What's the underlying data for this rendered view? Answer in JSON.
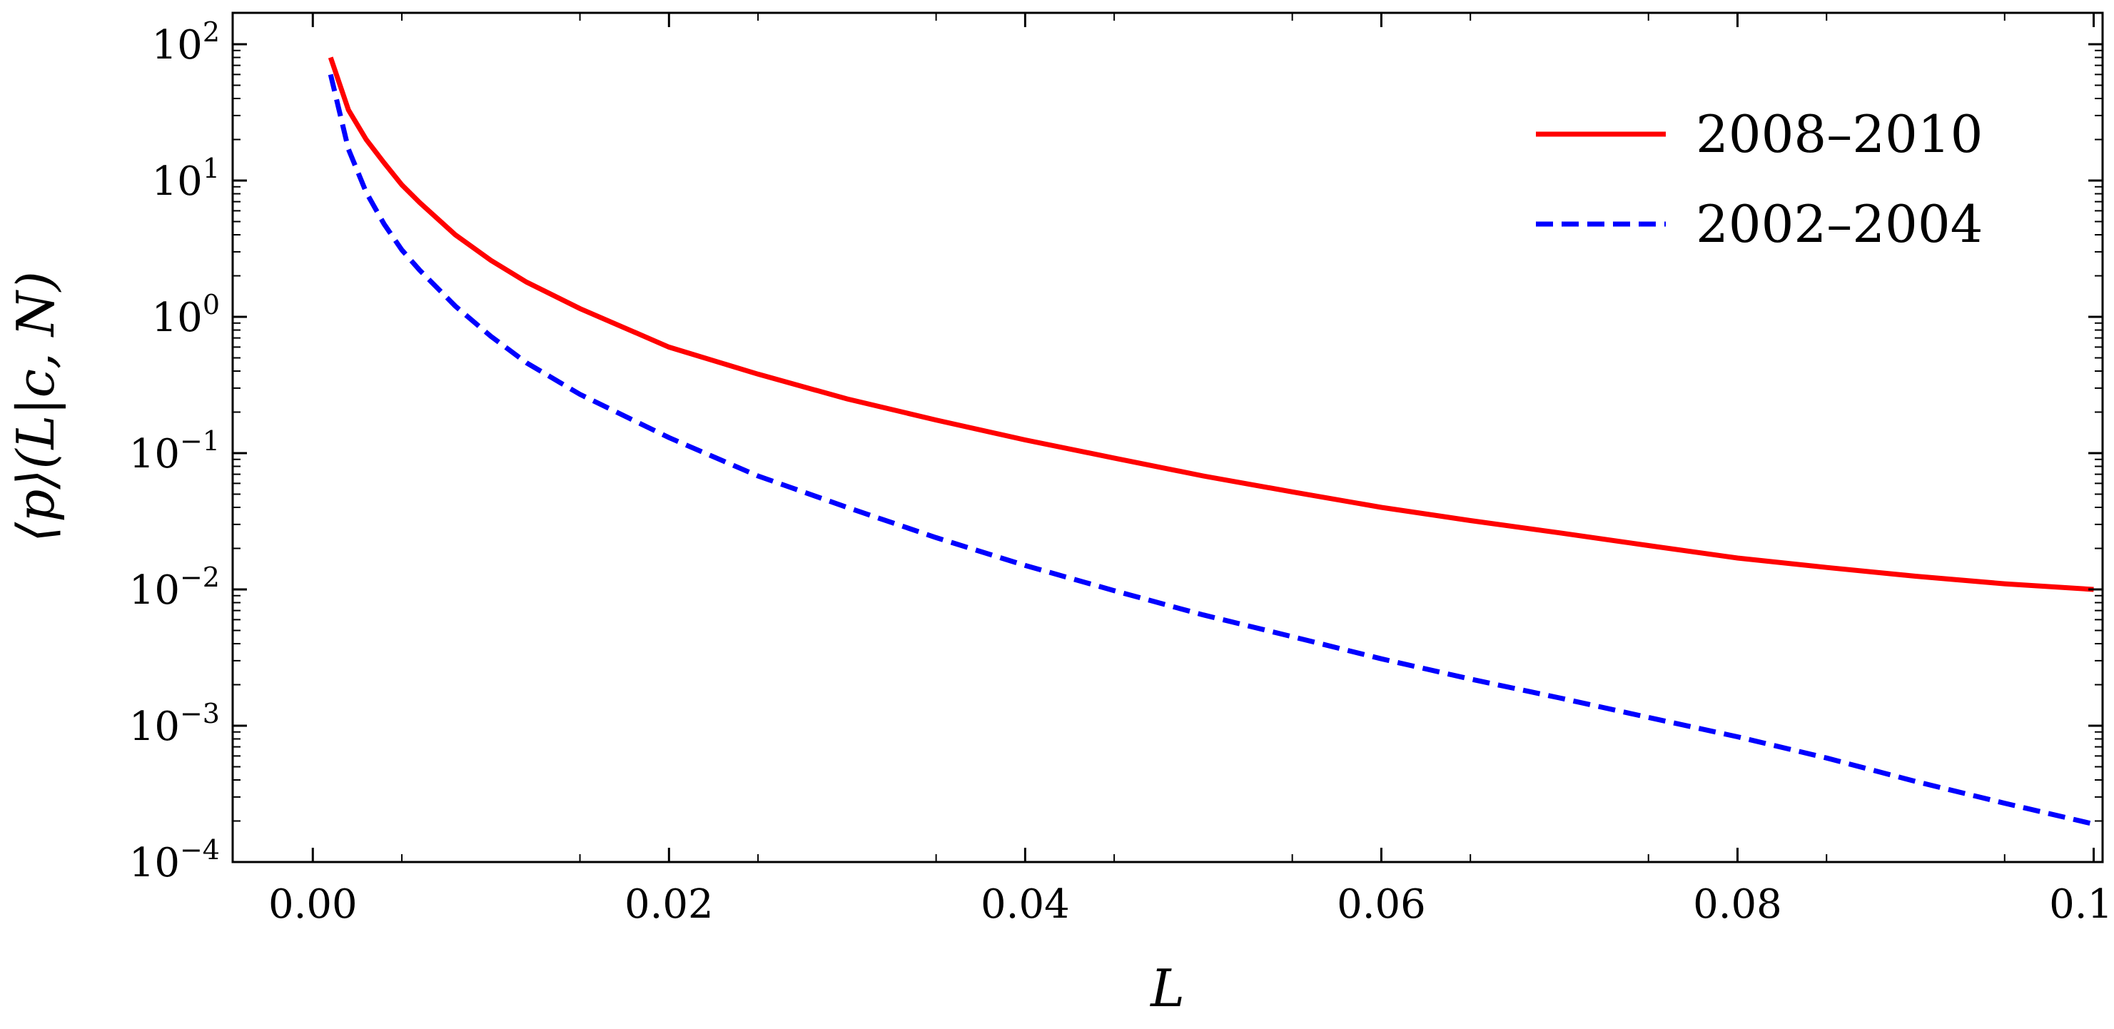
{
  "chart_data": {
    "type": "line",
    "xlabel": "L",
    "ylabel": "⟨p⟩(L|c, N)",
    "xlim": [
      -0.0045,
      0.1005
    ],
    "ylim": [
      0.0001,
      170
    ],
    "yscale": "log",
    "grid": false,
    "legend_position": "top-right",
    "x_ticks": [
      {
        "value": 0.0,
        "label": "0.00"
      },
      {
        "value": 0.02,
        "label": "0.02"
      },
      {
        "value": 0.04,
        "label": "0.04"
      },
      {
        "value": 0.06,
        "label": "0.06"
      },
      {
        "value": 0.08,
        "label": "0.08"
      },
      {
        "value": 0.1,
        "label": "0.10"
      }
    ],
    "y_ticks": [
      {
        "value": 100,
        "base": "10",
        "exp": "2"
      },
      {
        "value": 10,
        "base": "10",
        "exp": "1"
      },
      {
        "value": 1,
        "base": "10",
        "exp": "0"
      },
      {
        "value": 0.1,
        "base": "10",
        "exp": "−1"
      },
      {
        "value": 0.01,
        "base": "10",
        "exp": "−2"
      },
      {
        "value": 0.001,
        "base": "10",
        "exp": "−3"
      },
      {
        "value": 0.0001,
        "base": "10",
        "exp": "−4"
      }
    ],
    "series": [
      {
        "name": "2008–2010",
        "color": "#ff0000",
        "dash": "solid",
        "x": [
          0.001,
          0.002,
          0.003,
          0.004,
          0.005,
          0.006,
          0.008,
          0.01,
          0.012,
          0.015,
          0.02,
          0.025,
          0.03,
          0.035,
          0.04,
          0.045,
          0.05,
          0.055,
          0.06,
          0.065,
          0.07,
          0.075,
          0.08,
          0.085,
          0.09,
          0.095,
          0.1
        ],
        "y": [
          80,
          33,
          20,
          13.5,
          9.3,
          6.9,
          4.0,
          2.6,
          1.8,
          1.15,
          0.6,
          0.38,
          0.25,
          0.175,
          0.125,
          0.092,
          0.068,
          0.052,
          0.04,
          0.032,
          0.026,
          0.021,
          0.017,
          0.0145,
          0.0125,
          0.011,
          0.01
        ]
      },
      {
        "name": "2002–2004",
        "color": "#0000ff",
        "dash": "dashed",
        "x": [
          0.001,
          0.002,
          0.003,
          0.004,
          0.005,
          0.006,
          0.008,
          0.01,
          0.012,
          0.015,
          0.02,
          0.025,
          0.03,
          0.035,
          0.04,
          0.045,
          0.05,
          0.055,
          0.06,
          0.065,
          0.07,
          0.075,
          0.08,
          0.085,
          0.09,
          0.095,
          0.1
        ],
        "y": [
          60,
          17,
          8.2,
          4.8,
          3.1,
          2.2,
          1.2,
          0.72,
          0.46,
          0.27,
          0.13,
          0.068,
          0.04,
          0.024,
          0.015,
          0.0098,
          0.0065,
          0.0045,
          0.0031,
          0.0022,
          0.0016,
          0.00115,
          0.00083,
          0.00058,
          0.00039,
          0.00027,
          0.00019
        ]
      }
    ]
  }
}
